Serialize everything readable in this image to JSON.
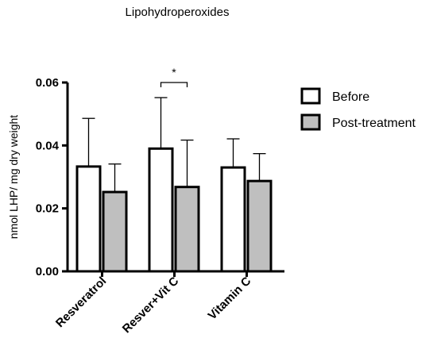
{
  "chart_data": {
    "type": "bar",
    "title": "Lipohydroperoxides",
    "ylabel": "nmol LHP/ mg dry weight",
    "xlabel": "",
    "ylim": [
      0,
      0.06
    ],
    "yticks": [
      "0.00",
      "0.02",
      "0.04",
      "0.06"
    ],
    "yticks_values": [
      0.0,
      0.02,
      0.04,
      0.06
    ],
    "categories": [
      "Resveratrol",
      "Resver+Vit C",
      "Vitamin C"
    ],
    "series": [
      {
        "name": "Before",
        "color": "#ffffff",
        "values": [
          0.0333,
          0.039,
          0.033
        ],
        "errors": [
          0.0153,
          0.0162,
          0.0091
        ]
      },
      {
        "name": "Post-treatment",
        "color": "#bfbfbf",
        "values": [
          0.0252,
          0.0268,
          0.0287
        ],
        "errors": [
          0.0089,
          0.0149,
          0.0087
        ]
      }
    ],
    "annotations": [
      {
        "text": "*",
        "category": "Resver+Vit C",
        "between": [
          "Before",
          "Post-treatment"
        ]
      }
    ],
    "legend_position": "right",
    "grid": false
  }
}
